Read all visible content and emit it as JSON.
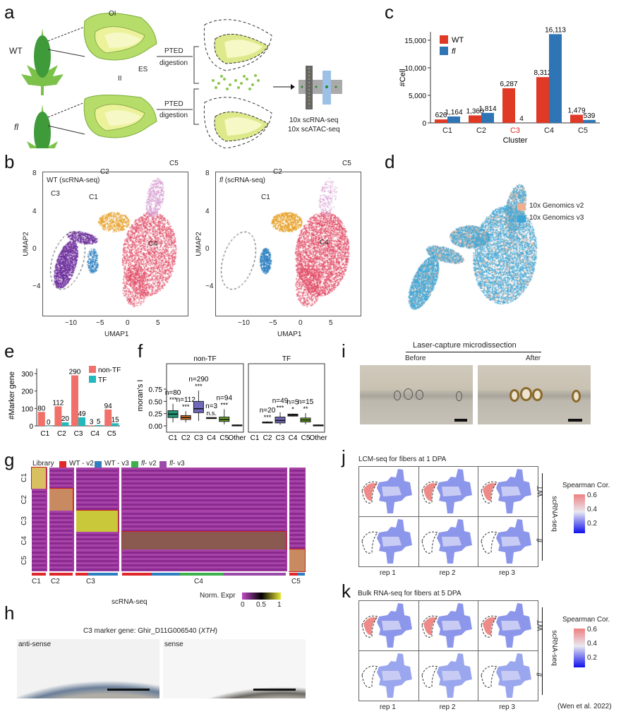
{
  "panel_labels": {
    "a": "a",
    "b": "b",
    "c": "c",
    "d": "d",
    "e": "e",
    "f": "f",
    "g": "g",
    "h": "h",
    "i": "i",
    "j": "j",
    "k": "k"
  },
  "panel_a": {
    "wt": "WT",
    "fl": "fl",
    "ol": "OI",
    "il": "II",
    "es": "ES",
    "pted_top": "PTED",
    "digestion_top": "digestion",
    "pted_bottom": "PTED",
    "digestion_bottom": "digestion",
    "seq_rna": "10x scRNA-seq",
    "seq_atac": "10x scATAC-seq"
  },
  "panel_b": {
    "plots": [
      {
        "title_italic": "",
        "title": "WT (scRNA-seq)"
      },
      {
        "title_italic": "fl",
        "title": " (scRNA-seq)"
      }
    ],
    "xlabel": "UMAP1",
    "ylabel": "UMAP2",
    "xticks": [
      "−10",
      "−5",
      "0",
      "5"
    ],
    "yticks": [
      "8",
      "4",
      "0",
      "−4"
    ],
    "clusters": [
      "C1",
      "C2",
      "C3",
      "C4",
      "C5"
    ],
    "cluster_colors": {
      "C1": "#2a7fc0",
      "C2": "#e59a1c",
      "C3": "#6a2a9a",
      "C4": "#e04a64",
      "C5": "#d59ad0"
    }
  },
  "panel_d": {
    "legend": [
      "10x Genomics v2",
      "10x Genomics v3"
    ],
    "colors": [
      "#f0b090",
      "#3aa6d8"
    ]
  },
  "panel_g": {
    "library_label": "Library",
    "libraries": [
      {
        "label": "WT - v2",
        "italic": "",
        "color": "#e0282a"
      },
      {
        "label": "WT - v3",
        "italic": "",
        "color": "#2f7fc0"
      },
      {
        "label": "- v2",
        "italic": "fl",
        "color": "#3cb04a"
      },
      {
        "label": "- v3",
        "italic": "fl",
        "color": "#9a4aa8"
      }
    ],
    "row_labels": [
      "C1",
      "C2",
      "C3",
      "C4",
      "C5"
    ],
    "col_labels": [
      "C1",
      "C2",
      "C3",
      "C4",
      "C5"
    ],
    "xlabel": "scRNA-seq",
    "colorbar_label": "Norm. Expr",
    "colorbar_ticks": [
      "0",
      "0.5",
      "1"
    ]
  },
  "panel_h": {
    "title_prefix": "C3 marker gene: Ghir_D11G006540 (",
    "title_gene": "XTH",
    "title_suffix": ")",
    "left": "anti-sense",
    "right": "sense"
  },
  "panel_i": {
    "title": "Laser-capture microdissection",
    "before": "Before",
    "after": "After"
  },
  "panel_j": {
    "title": "LCM-seq for fibers at 1 DPA",
    "reps": [
      "rep 1",
      "rep 2",
      "rep 3"
    ],
    "rows": [
      "WT",
      "fl"
    ],
    "side": "scRNA-seq",
    "cbar_title": "Spearman Cor.",
    "cbar_ticks": [
      "0.6",
      "0.4",
      "0.2"
    ]
  },
  "panel_k": {
    "title": "Bulk RNA-seq for fibers at 5 DPA",
    "reps": [
      "rep 1",
      "rep 2",
      "rep 3"
    ],
    "rows": [
      "WT",
      "fl"
    ],
    "side": "scRNA-seq",
    "cbar_title": "Spearman Cor.",
    "cbar_ticks": [
      "0.6",
      "0.4",
      "0.2"
    ],
    "citation": "(Wen et al. 2022)"
  },
  "chart_data": [
    {
      "id": "c",
      "type": "bar",
      "categories": [
        "C1",
        "C2",
        "C3",
        "C4",
        "C5"
      ],
      "highlight_category": "C3",
      "highlight_color": "#e0282a",
      "series": [
        {
          "name": "WT",
          "italic": false,
          "color": "#e03a26",
          "values": [
            626,
            1360,
            6287,
            8312,
            1479
          ],
          "labels": [
            "626",
            "1,360",
            "6,287",
            "8,312",
            "1,479"
          ]
        },
        {
          "name": "fl",
          "italic": true,
          "color": "#2f74b5",
          "values": [
            1164,
            1814,
            4,
            16113,
            539
          ],
          "labels": [
            "1,164",
            "1,814",
            "4",
            "16,113",
            "539"
          ]
        }
      ],
      "xlabel": "Cluster",
      "ylabel": "#Cell",
      "ylim": [
        0,
        16500
      ],
      "yticks": [
        0,
        5000,
        10000,
        15000
      ],
      "ytick_labels": [
        "0",
        "5,000",
        "10,000",
        "15,000"
      ],
      "legend": "top-left"
    },
    {
      "id": "e",
      "type": "bar",
      "categories": [
        "C1",
        "C2",
        "C3",
        "C4",
        "C5"
      ],
      "series": [
        {
          "name": "non-TF",
          "color": "#f0706a",
          "values": [
            80,
            112,
            290,
            3,
            94
          ]
        },
        {
          "name": "TF",
          "color": "#22b8bc",
          "values": [
            0,
            20,
            49,
            5,
            15
          ]
        }
      ],
      "xlabel": "",
      "ylabel": "#Marker gene",
      "ylim": [
        0,
        330
      ],
      "yticks": [
        0,
        100,
        200,
        300
      ],
      "legend": "top-right"
    },
    {
      "id": "f",
      "type": "box",
      "ylabel": "moran's I",
      "ylim": [
        0,
        0.85
      ],
      "yticks": [
        0,
        0.25,
        0.5,
        0.75
      ],
      "ytick_labels": [
        "0.00",
        "0.25",
        "0.50",
        "0.75"
      ],
      "categories": [
        "C1",
        "C2",
        "C3",
        "C4",
        "C5",
        "Other"
      ],
      "colors": [
        "#1e9a78",
        "#e0701e",
        "#7068b8",
        "#333333",
        "#6aaa2a",
        "#333333"
      ],
      "panels": [
        {
          "title": "non-TF",
          "boxes": [
            {
              "cat": "C1",
              "n": "n=80",
              "sig": "***",
              "min": 0.07,
              "q1": 0.17,
              "med": 0.24,
              "q3": 0.31,
              "max": 0.45
            },
            {
              "cat": "C2",
              "n": "n=112",
              "sig": "***",
              "min": 0.07,
              "q1": 0.13,
              "med": 0.17,
              "q3": 0.21,
              "max": 0.3
            },
            {
              "cat": "C3",
              "n": "n=290",
              "sig": "***",
              "min": 0.1,
              "q1": 0.27,
              "med": 0.35,
              "q3": 0.5,
              "max": 0.72
            },
            {
              "cat": "C4",
              "n": "n=3",
              "sig": "n.s.",
              "min": 0.15,
              "q1": 0.15,
              "med": 0.16,
              "q3": 0.17,
              "max": 0.17
            },
            {
              "cat": "C5",
              "n": "n=94",
              "sig": "***",
              "min": 0.03,
              "q1": 0.09,
              "med": 0.13,
              "q3": 0.18,
              "max": 0.34
            },
            {
              "cat": "Other",
              "n": "",
              "sig": "",
              "min": 0.0,
              "q1": 0.0,
              "med": 0.01,
              "q3": 0.02,
              "max": 0.03
            }
          ]
        },
        {
          "title": "TF",
          "boxes": [
            {
              "cat": "C1",
              "n": "",
              "sig": "",
              "min": null,
              "q1": null,
              "med": null,
              "q3": null,
              "max": null
            },
            {
              "cat": "C2",
              "n": "n=20",
              "sig": "***",
              "min": 0.05,
              "q1": 0.06,
              "med": 0.07,
              "q3": 0.08,
              "max": 0.09
            },
            {
              "cat": "C3",
              "n": "n=49",
              "sig": "***",
              "min": 0.02,
              "q1": 0.06,
              "med": 0.11,
              "q3": 0.18,
              "max": 0.28
            },
            {
              "cat": "C4",
              "n": "n=5",
              "sig": "*",
              "min": 0.19,
              "q1": 0.2,
              "med": 0.22,
              "q3": 0.24,
              "max": 0.25
            },
            {
              "cat": "C5",
              "n": "n=15",
              "sig": "**",
              "min": 0.03,
              "q1": 0.08,
              "med": 0.12,
              "q3": 0.16,
              "max": 0.26
            },
            {
              "cat": "Other",
              "n": "",
              "sig": "",
              "min": 0.0,
              "q1": 0.0,
              "med": 0.01,
              "q3": 0.02,
              "max": 0.03
            }
          ]
        }
      ]
    }
  ]
}
